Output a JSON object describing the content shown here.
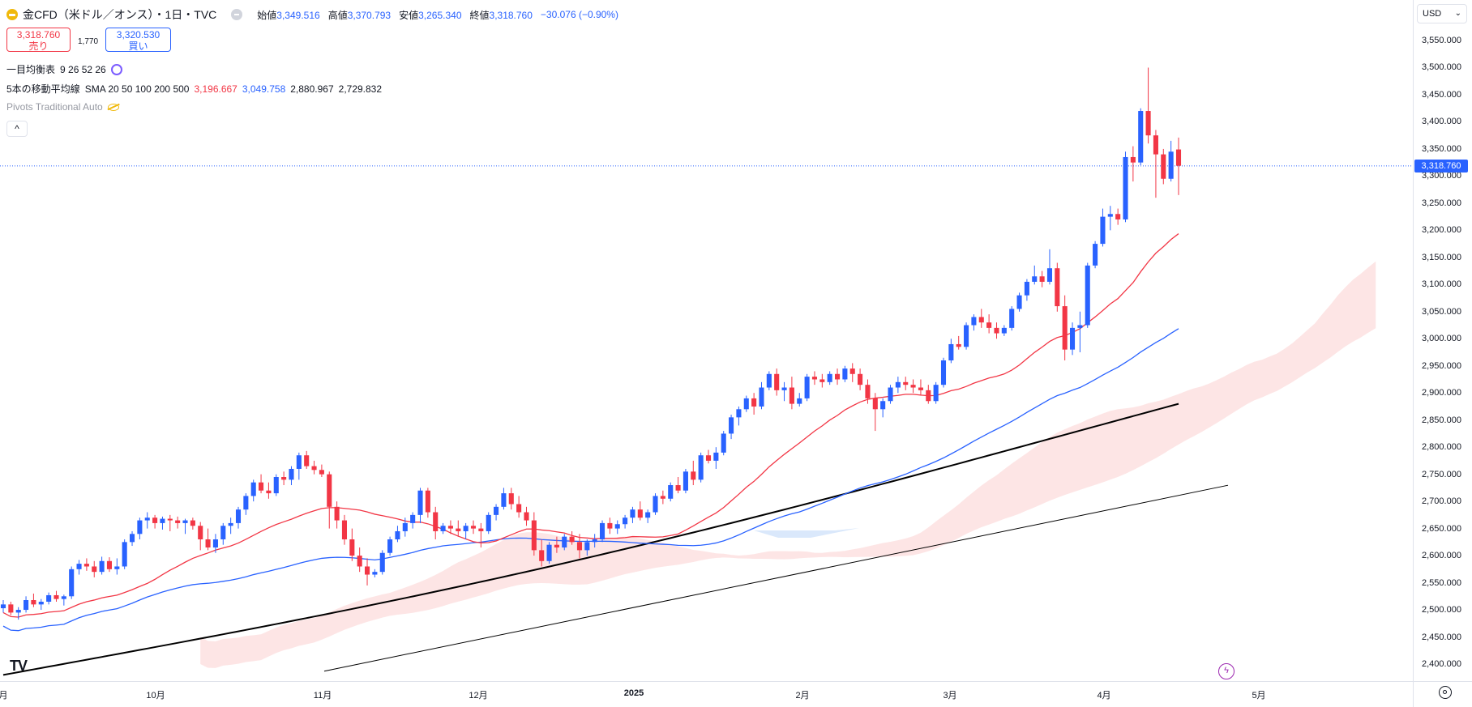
{
  "header": {
    "title": "金CFD（米ドル／オンス）・1日・TVC",
    "ohlc": [
      {
        "label": "始値",
        "value": "3,349.516"
      },
      {
        "label": "高値",
        "value": "3,370.793"
      },
      {
        "label": "安値",
        "value": "3,265.340"
      },
      {
        "label": "終値",
        "value": "3,318.760"
      }
    ],
    "change": "−30.076 (−0.90%)"
  },
  "trade": {
    "sell_price": "3,318.760",
    "sell_label": "売り",
    "spread": "1,770",
    "buy_price": "3,320.530",
    "buy_label": "買い"
  },
  "indicators": {
    "ichimoku_name": "一目均衡表",
    "ichimoku_params": "9 26 52 26",
    "ma_name": "5本の移動平均線",
    "ma_params": "SMA 20 50 100 200 500",
    "ma_values": [
      {
        "value": "3,196.667",
        "color": "#f23645"
      },
      {
        "value": "3,049.758",
        "color": "#2962ff"
      },
      {
        "value": "2,880.967",
        "color": "#131722"
      },
      {
        "value": "2,729.832",
        "color": "#131722"
      }
    ],
    "pivots_label": "Pivots Traditional Auto",
    "collapse_label": "^"
  },
  "axis": {
    "currency": "USD",
    "current_price": "3,318.760",
    "y_ticks": [
      "3,550.000",
      "3,500.000",
      "3,450.000",
      "3,400.000",
      "3,350.000",
      "3,300.000",
      "3,250.000",
      "3,200.000",
      "3,150.000",
      "3,100.000",
      "3,050.000",
      "3,000.000",
      "2,950.000",
      "2,900.000",
      "2,850.000",
      "2,800.000",
      "2,750.000",
      "2,700.000",
      "2,650.000",
      "2,600.000",
      "2,550.000",
      "2,500.000",
      "2,450.000",
      "2,400.000"
    ],
    "x_ticks": [
      {
        "label": "月",
        "bold": false
      },
      {
        "label": "10月",
        "bold": false
      },
      {
        "label": "11月",
        "bold": false
      },
      {
        "label": "12月",
        "bold": false
      },
      {
        "label": "2025",
        "bold": true
      },
      {
        "label": "2月",
        "bold": false
      },
      {
        "label": "3月",
        "bold": false
      },
      {
        "label": "4月",
        "bold": false
      },
      {
        "label": "5月",
        "bold": false
      }
    ]
  },
  "colors": {
    "up": "#2962ff",
    "down": "#f23645",
    "sma20": "#f23645",
    "sma50": "#2962ff",
    "sma100": "#000000",
    "sma200": "#000000",
    "cloud_bull": "#fde0e0",
    "cloud_bear": "#d6e6fb"
  },
  "chart_data": {
    "type": "candlestick",
    "ylim": [
      2380,
      3580
    ],
    "candles": [
      [
        2503,
        2518,
        2495,
        2510
      ],
      [
        2510,
        2515,
        2490,
        2495
      ],
      [
        2495,
        2505,
        2482,
        2500
      ],
      [
        2500,
        2525,
        2495,
        2518
      ],
      [
        2518,
        2530,
        2505,
        2510
      ],
      [
        2510,
        2520,
        2500,
        2515
      ],
      [
        2515,
        2532,
        2510,
        2527
      ],
      [
        2527,
        2535,
        2515,
        2520
      ],
      [
        2520,
        2528,
        2508,
        2525
      ],
      [
        2525,
        2580,
        2520,
        2575
      ],
      [
        2575,
        2592,
        2565,
        2585
      ],
      [
        2585,
        2595,
        2572,
        2580
      ],
      [
        2580,
        2590,
        2560,
        2570
      ],
      [
        2570,
        2598,
        2565,
        2590
      ],
      [
        2590,
        2597,
        2570,
        2575
      ],
      [
        2575,
        2595,
        2565,
        2580
      ],
      [
        2580,
        2630,
        2575,
        2625
      ],
      [
        2625,
        2645,
        2618,
        2640
      ],
      [
        2640,
        2670,
        2630,
        2665
      ],
      [
        2665,
        2680,
        2650,
        2670
      ],
      [
        2670,
        2675,
        2650,
        2660
      ],
      [
        2660,
        2672,
        2648,
        2668
      ],
      [
        2668,
        2675,
        2645,
        2665
      ],
      [
        2665,
        2672,
        2650,
        2660
      ],
      [
        2660,
        2668,
        2640,
        2665
      ],
      [
        2665,
        2670,
        2648,
        2655
      ],
      [
        2655,
        2662,
        2610,
        2630
      ],
      [
        2630,
        2650,
        2610,
        2615
      ],
      [
        2615,
        2640,
        2605,
        2630
      ],
      [
        2630,
        2660,
        2620,
        2655
      ],
      [
        2655,
        2670,
        2640,
        2660
      ],
      [
        2660,
        2690,
        2650,
        2685
      ],
      [
        2685,
        2715,
        2675,
        2710
      ],
      [
        2710,
        2740,
        2700,
        2735
      ],
      [
        2735,
        2750,
        2715,
        2720
      ],
      [
        2720,
        2735,
        2705,
        2715
      ],
      [
        2715,
        2750,
        2710,
        2745
      ],
      [
        2745,
        2755,
        2730,
        2740
      ],
      [
        2740,
        2765,
        2730,
        2760
      ],
      [
        2760,
        2790,
        2740,
        2785
      ],
      [
        2785,
        2793,
        2760,
        2765
      ],
      [
        2765,
        2775,
        2750,
        2758
      ],
      [
        2758,
        2768,
        2745,
        2750
      ],
      [
        2750,
        2755,
        2650,
        2690
      ],
      [
        2690,
        2700,
        2650,
        2665
      ],
      [
        2665,
        2675,
        2620,
        2630
      ],
      [
        2630,
        2650,
        2590,
        2600
      ],
      [
        2600,
        2615,
        2570,
        2580
      ],
      [
        2580,
        2595,
        2545,
        2565
      ],
      [
        2565,
        2575,
        2560,
        2570
      ],
      [
        2570,
        2610,
        2565,
        2605
      ],
      [
        2605,
        2635,
        2600,
        2630
      ],
      [
        2630,
        2655,
        2625,
        2645
      ],
      [
        2645,
        2670,
        2635,
        2660
      ],
      [
        2660,
        2680,
        2650,
        2675
      ],
      [
        2675,
        2725,
        2660,
        2720
      ],
      [
        2720,
        2725,
        2670,
        2680
      ],
      [
        2680,
        2690,
        2630,
        2645
      ],
      [
        2645,
        2660,
        2640,
        2655
      ],
      [
        2655,
        2665,
        2640,
        2650
      ],
      [
        2650,
        2665,
        2635,
        2645
      ],
      [
        2645,
        2660,
        2630,
        2655
      ],
      [
        2655,
        2665,
        2640,
        2650
      ],
      [
        2650,
        2660,
        2615,
        2645
      ],
      [
        2645,
        2680,
        2640,
        2675
      ],
      [
        2675,
        2695,
        2665,
        2690
      ],
      [
        2690,
        2725,
        2685,
        2715
      ],
      [
        2715,
        2725,
        2685,
        2695
      ],
      [
        2695,
        2710,
        2670,
        2680
      ],
      [
        2680,
        2690,
        2655,
        2665
      ],
      [
        2665,
        2680,
        2600,
        2610
      ],
      [
        2610,
        2630,
        2580,
        2590
      ],
      [
        2590,
        2625,
        2585,
        2620
      ],
      [
        2620,
        2635,
        2605,
        2615
      ],
      [
        2615,
        2640,
        2610,
        2635
      ],
      [
        2635,
        2645,
        2620,
        2625
      ],
      [
        2625,
        2640,
        2595,
        2610
      ],
      [
        2610,
        2630,
        2600,
        2625
      ],
      [
        2625,
        2640,
        2615,
        2630
      ],
      [
        2630,
        2665,
        2625,
        2660
      ],
      [
        2660,
        2670,
        2640,
        2650
      ],
      [
        2650,
        2665,
        2640,
        2658
      ],
      [
        2658,
        2675,
        2650,
        2670
      ],
      [
        2670,
        2690,
        2660,
        2685
      ],
      [
        2685,
        2700,
        2665,
        2670
      ],
      [
        2670,
        2685,
        2660,
        2680
      ],
      [
        2680,
        2715,
        2675,
        2710
      ],
      [
        2710,
        2720,
        2695,
        2705
      ],
      [
        2705,
        2735,
        2700,
        2730
      ],
      [
        2730,
        2745,
        2715,
        2720
      ],
      [
        2720,
        2760,
        2715,
        2755
      ],
      [
        2755,
        2775,
        2730,
        2740
      ],
      [
        2740,
        2790,
        2735,
        2785
      ],
      [
        2785,
        2795,
        2770,
        2775
      ],
      [
        2775,
        2800,
        2760,
        2790
      ],
      [
        2790,
        2830,
        2785,
        2825
      ],
      [
        2825,
        2860,
        2815,
        2855
      ],
      [
        2855,
        2875,
        2840,
        2870
      ],
      [
        2870,
        2895,
        2865,
        2890
      ],
      [
        2890,
        2900,
        2860,
        2875
      ],
      [
        2875,
        2920,
        2870,
        2910
      ],
      [
        2910,
        2940,
        2905,
        2935
      ],
      [
        2935,
        2945,
        2895,
        2905
      ],
      [
        2905,
        2920,
        2885,
        2910
      ],
      [
        2910,
        2930,
        2870,
        2880
      ],
      [
        2880,
        2900,
        2875,
        2890
      ],
      [
        2890,
        2935,
        2885,
        2930
      ],
      [
        2930,
        2940,
        2915,
        2925
      ],
      [
        2925,
        2935,
        2910,
        2920
      ],
      [
        2920,
        2940,
        2915,
        2935
      ],
      [
        2935,
        2945,
        2915,
        2925
      ],
      [
        2925,
        2950,
        2920,
        2945
      ],
      [
        2945,
        2955,
        2920,
        2935
      ],
      [
        2935,
        2945,
        2905,
        2915
      ],
      [
        2915,
        2925,
        2880,
        2890
      ],
      [
        2890,
        2900,
        2830,
        2870
      ],
      [
        2870,
        2890,
        2855,
        2885
      ],
      [
        2885,
        2915,
        2880,
        2910
      ],
      [
        2910,
        2930,
        2900,
        2920
      ],
      [
        2920,
        2930,
        2905,
        2915
      ],
      [
        2915,
        2925,
        2900,
        2910
      ],
      [
        2910,
        2925,
        2895,
        2905
      ],
      [
        2905,
        2915,
        2880,
        2885
      ],
      [
        2885,
        2920,
        2880,
        2915
      ],
      [
        2915,
        2965,
        2910,
        2960
      ],
      [
        2960,
        3000,
        2955,
        2990
      ],
      [
        2990,
        3005,
        2980,
        2985
      ],
      [
        2985,
        3030,
        2980,
        3025
      ],
      [
        3025,
        3045,
        3015,
        3040
      ],
      [
        3040,
        3055,
        3020,
        3030
      ],
      [
        3030,
        3045,
        3010,
        3020
      ],
      [
        3020,
        3030,
        3000,
        3010
      ],
      [
        3010,
        3025,
        3005,
        3020
      ],
      [
        3020,
        3060,
        3015,
        3055
      ],
      [
        3055,
        3085,
        3050,
        3080
      ],
      [
        3080,
        3110,
        3070,
        3105
      ],
      [
        3105,
        3135,
        3100,
        3115
      ],
      [
        3115,
        3125,
        3095,
        3105
      ],
      [
        3105,
        3165,
        3100,
        3130
      ],
      [
        3130,
        3140,
        3050,
        3060
      ],
      [
        3060,
        3080,
        2960,
        2980
      ],
      [
        2980,
        3030,
        2970,
        3020
      ],
      [
        3020,
        3050,
        2975,
        3025
      ],
      [
        3025,
        3140,
        3020,
        3135
      ],
      [
        3135,
        3180,
        3130,
        3175
      ],
      [
        3175,
        3240,
        3170,
        3225
      ],
      [
        3225,
        3245,
        3200,
        3230
      ],
      [
        3230,
        3240,
        3210,
        3220
      ],
      [
        3220,
        3345,
        3215,
        3335
      ],
      [
        3335,
        3355,
        3290,
        3325
      ],
      [
        3325,
        3425,
        3320,
        3420
      ],
      [
        3420,
        3500,
        3360,
        3375
      ],
      [
        3375,
        3385,
        3260,
        3340
      ],
      [
        3340,
        3350,
        3285,
        3295
      ],
      [
        3295,
        3365,
        3290,
        3345
      ],
      [
        3349,
        3371,
        3265,
        3319
      ]
    ],
    "sma": [
      {
        "name": "SMA 20",
        "period": 20,
        "color": "#f23645",
        "width": 1.3
      },
      {
        "name": "SMA 50",
        "period": 50,
        "color": "#2962ff",
        "width": 1.3
      },
      {
        "name": "SMA 100",
        "period": 100,
        "color": "#000000",
        "width": 2
      },
      {
        "name": "SMA 200",
        "values_end": [
          [
            -60,
            2380
          ],
          [
            0,
            2729.8
          ]
        ],
        "color": "#000000",
        "width": 1
      }
    ],
    "current_price": 3318.76
  }
}
